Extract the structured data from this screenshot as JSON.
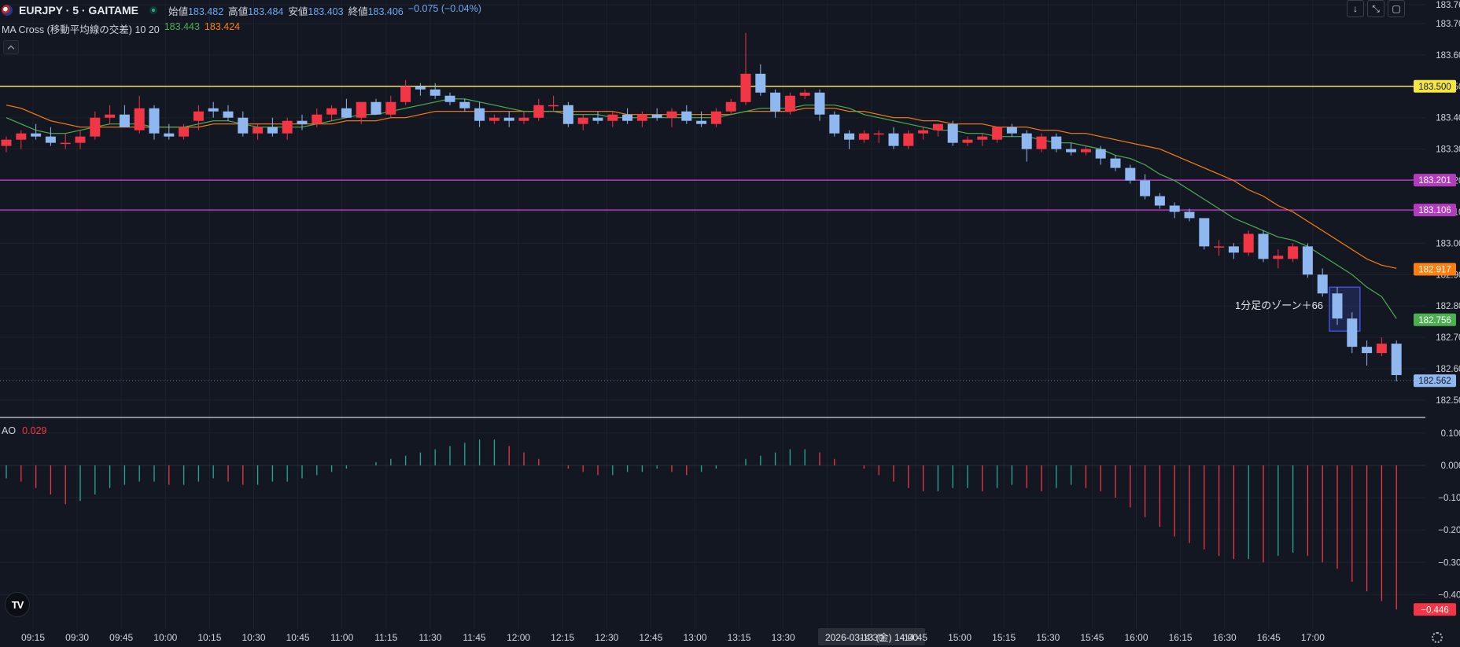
{
  "header": {
    "symbol": "EURJPY · 5 · GAITAME",
    "open_label": "始値",
    "open": "183.482",
    "high_label": "高値",
    "high": "183.484",
    "low_label": "安値",
    "low": "183.403",
    "close_label": "終値",
    "close": "183.406",
    "change": "−0.075 (−0.04%)"
  },
  "indicator_ma": {
    "title": "MA Cross (移動平均線の交差) 10 20",
    "fast_value": "183.443",
    "slow_value": "183.424",
    "fast_color": "#4caf50",
    "slow_color": "#ff7f0e"
  },
  "indicator_ao": {
    "title": "AO",
    "value": "0.029"
  },
  "toolbar": {
    "icons": [
      "arrow-down-icon",
      "collapse-icon",
      "maximize-icon"
    ]
  },
  "annotation": {
    "text": "1分足のゾーン＋66"
  },
  "colors": {
    "background": "#131722",
    "up": "#f23645",
    "down": "#8fb7f0",
    "grid": "#1e222d",
    "yellow_line": "#f5e642",
    "magenta_line": "#b23cbc",
    "ao_up": "#22ab94",
    "ao_down": "#f23645"
  },
  "chart_data": [
    {
      "type": "candlestick",
      "ylim": [
        182.47,
        183.76
      ],
      "price_ticks": [
        "183.760",
        "183.700",
        "183.600",
        "183.500",
        "183.400",
        "183.300",
        "183.200",
        "183.100",
        "183.000",
        "182.900",
        "182.800",
        "182.700",
        "182.600",
        "182.500"
      ],
      "x_labels": [
        "09:15",
        "09:30",
        "09:45",
        "10:00",
        "10:15",
        "10:30",
        "10:45",
        "11:00",
        "11:15",
        "11:30",
        "11:45",
        "12:00",
        "12:15",
        "12:30",
        "12:45",
        "13:00",
        "13:15",
        "13:30",
        "2026-03-13 (金)  14:00",
        "14:30",
        "14:45",
        "15:00",
        "15:15",
        "15:30",
        "15:45",
        "16:00",
        "16:15",
        "16:30",
        "16:45",
        "17:00"
      ],
      "horizontal_lines": [
        {
          "price": 183.5,
          "label": "183.500",
          "color": "#f5e642"
        },
        {
          "price": 183.201,
          "label": "183.201",
          "color": "#b23cbc"
        },
        {
          "price": 183.106,
          "label": "183.106",
          "color": "#b23cbc"
        }
      ],
      "price_badges": [
        {
          "price": 182.917,
          "label": "182.917",
          "color": "#ff7f0e"
        },
        {
          "price": 182.756,
          "label": "182.756",
          "color": "#4caf50"
        },
        {
          "price": 182.562,
          "label": "182.562",
          "color": "#8fb7f0"
        }
      ],
      "zone": {
        "from_bar": 90,
        "to_bar": 91,
        "high": 182.86,
        "low": 182.72
      },
      "candles": [
        [
          183.31,
          183.34,
          183.29,
          183.33
        ],
        [
          183.33,
          183.36,
          183.3,
          183.35
        ],
        [
          183.35,
          183.38,
          183.33,
          183.34
        ],
        [
          183.34,
          183.37,
          183.31,
          183.32
        ],
        [
          183.32,
          183.35,
          183.3,
          183.32
        ],
        [
          183.32,
          183.36,
          183.3,
          183.34
        ],
        [
          183.34,
          183.42,
          183.33,
          183.4
        ],
        [
          183.4,
          183.44,
          183.38,
          183.41
        ],
        [
          183.41,
          183.44,
          183.38,
          183.37
        ],
        [
          183.36,
          183.47,
          183.35,
          183.43
        ],
        [
          183.43,
          183.44,
          183.33,
          183.35
        ],
        [
          183.35,
          183.38,
          183.33,
          183.34
        ],
        [
          183.34,
          183.38,
          183.33,
          183.37
        ],
        [
          183.39,
          183.44,
          183.36,
          183.42
        ],
        [
          183.43,
          183.45,
          183.4,
          183.42
        ],
        [
          183.42,
          183.44,
          183.39,
          183.4
        ],
        [
          183.4,
          183.42,
          183.34,
          183.35
        ],
        [
          183.35,
          183.38,
          183.33,
          183.37
        ],
        [
          183.37,
          183.4,
          183.34,
          183.35
        ],
        [
          183.35,
          183.4,
          183.33,
          183.39
        ],
        [
          183.39,
          183.41,
          183.36,
          183.38
        ],
        [
          183.38,
          183.43,
          183.37,
          183.41
        ],
        [
          183.41,
          183.44,
          183.39,
          183.43
        ],
        [
          183.43,
          183.46,
          183.4,
          183.4
        ],
        [
          183.4,
          183.45,
          183.38,
          183.45
        ],
        [
          183.45,
          183.46,
          183.41,
          183.41
        ],
        [
          183.41,
          183.47,
          183.4,
          183.45
        ],
        [
          183.45,
          183.52,
          183.44,
          183.5
        ],
        [
          183.5,
          183.51,
          183.47,
          183.49
        ],
        [
          183.49,
          183.51,
          183.46,
          183.47
        ],
        [
          183.47,
          183.48,
          183.44,
          183.45
        ],
        [
          183.45,
          183.46,
          183.42,
          183.43
        ],
        [
          183.43,
          183.45,
          183.37,
          183.39
        ],
        [
          183.39,
          183.41,
          183.38,
          183.4
        ],
        [
          183.4,
          183.42,
          183.37,
          183.39
        ],
        [
          183.39,
          183.42,
          183.38,
          183.4
        ],
        [
          183.4,
          183.46,
          183.39,
          183.44
        ],
        [
          183.44,
          183.47,
          183.42,
          183.44
        ],
        [
          183.44,
          183.45,
          183.37,
          183.38
        ],
        [
          183.38,
          183.41,
          183.36,
          183.4
        ],
        [
          183.4,
          183.42,
          183.38,
          183.39
        ],
        [
          183.39,
          183.42,
          183.37,
          183.41
        ],
        [
          183.41,
          183.43,
          183.38,
          183.39
        ],
        [
          183.39,
          183.42,
          183.37,
          183.41
        ],
        [
          183.41,
          183.43,
          183.39,
          183.4
        ],
        [
          183.4,
          183.43,
          183.37,
          183.42
        ],
        [
          183.42,
          183.44,
          183.38,
          183.39
        ],
        [
          183.39,
          183.42,
          183.37,
          183.38
        ],
        [
          183.38,
          183.43,
          183.37,
          183.42
        ],
        [
          183.42,
          183.46,
          183.41,
          183.45
        ],
        [
          183.45,
          183.67,
          183.44,
          183.54
        ],
        [
          183.54,
          183.57,
          183.47,
          183.48
        ],
        [
          183.48,
          183.49,
          183.4,
          183.42
        ],
        [
          183.42,
          183.48,
          183.41,
          183.47
        ],
        [
          183.47,
          183.49,
          183.46,
          183.48
        ],
        [
          183.48,
          183.49,
          183.39,
          183.41
        ],
        [
          183.41,
          183.42,
          183.34,
          183.35
        ],
        [
          183.35,
          183.36,
          183.3,
          183.33
        ],
        [
          183.33,
          183.36,
          183.32,
          183.35
        ],
        [
          183.35,
          183.36,
          183.32,
          183.35
        ],
        [
          183.35,
          183.37,
          183.3,
          183.31
        ],
        [
          183.31,
          183.36,
          183.3,
          183.35
        ],
        [
          183.35,
          183.37,
          183.33,
          183.36
        ],
        [
          183.36,
          183.38,
          183.34,
          183.38
        ],
        [
          183.38,
          183.39,
          183.31,
          183.32
        ],
        [
          183.32,
          183.34,
          183.31,
          183.33
        ],
        [
          183.33,
          183.35,
          183.31,
          183.34
        ],
        [
          183.33,
          183.37,
          183.32,
          183.37
        ],
        [
          183.37,
          183.38,
          183.34,
          183.35
        ],
        [
          183.35,
          183.36,
          183.26,
          183.3
        ],
        [
          183.3,
          183.35,
          183.29,
          183.34
        ],
        [
          183.34,
          183.35,
          183.29,
          183.3
        ],
        [
          183.3,
          183.32,
          183.28,
          183.29
        ],
        [
          183.29,
          183.31,
          183.28,
          183.3
        ],
        [
          183.3,
          183.31,
          183.25,
          183.27
        ],
        [
          183.27,
          183.28,
          183.23,
          183.24
        ],
        [
          183.24,
          183.25,
          183.19,
          183.2
        ],
        [
          183.2,
          183.22,
          183.14,
          183.15
        ],
        [
          183.15,
          183.16,
          183.11,
          183.12
        ],
        [
          183.12,
          183.13,
          183.08,
          183.1
        ],
        [
          183.1,
          183.11,
          183.07,
          183.08
        ],
        [
          183.08,
          183.08,
          182.98,
          182.99
        ],
        [
          182.99,
          183.01,
          182.96,
          182.99
        ],
        [
          182.99,
          183.0,
          182.95,
          182.97
        ],
        [
          182.97,
          183.04,
          182.96,
          183.03
        ],
        [
          183.03,
          183.04,
          182.94,
          182.95
        ],
        [
          182.95,
          182.98,
          182.92,
          182.96
        ],
        [
          182.95,
          183.0,
          182.94,
          182.99
        ],
        [
          182.99,
          183.0,
          182.89,
          182.9
        ],
        [
          182.9,
          182.92,
          182.83,
          182.84
        ],
        [
          182.84,
          182.86,
          182.74,
          182.76
        ],
        [
          182.76,
          182.78,
          182.65,
          182.67
        ],
        [
          182.67,
          182.69,
          182.61,
          182.65
        ],
        [
          182.65,
          182.7,
          182.64,
          182.68
        ],
        [
          182.68,
          182.69,
          182.56,
          182.58
        ]
      ],
      "ma_fast": [
        183.4,
        183.38,
        183.36,
        183.35,
        183.35,
        183.36,
        183.37,
        183.38,
        183.38,
        183.38,
        183.37,
        183.37,
        183.37,
        183.38,
        183.39,
        183.39,
        183.38,
        183.37,
        183.37,
        183.37,
        183.37,
        183.38,
        183.39,
        183.4,
        183.41,
        183.41,
        183.42,
        183.43,
        183.44,
        183.45,
        183.46,
        183.46,
        183.45,
        183.44,
        183.43,
        183.42,
        183.42,
        183.42,
        183.41,
        183.41,
        183.41,
        183.4,
        183.4,
        183.4,
        183.4,
        183.4,
        183.4,
        183.4,
        183.4,
        183.41,
        183.42,
        183.43,
        183.43,
        183.43,
        183.44,
        183.44,
        183.44,
        183.43,
        183.41,
        183.4,
        183.39,
        183.38,
        183.37,
        183.36,
        183.36,
        183.35,
        183.35,
        183.34,
        183.34,
        183.34,
        183.33,
        183.32,
        183.32,
        183.31,
        183.3,
        183.28,
        183.27,
        183.25,
        183.22,
        183.2,
        183.17,
        183.14,
        183.11,
        183.08,
        183.06,
        183.04,
        183.02,
        183.01,
        182.99,
        182.96,
        182.93,
        182.9,
        182.86,
        182.83,
        182.76
      ],
      "ma_slow": [
        183.44,
        183.43,
        183.41,
        183.39,
        183.38,
        183.37,
        183.37,
        183.37,
        183.37,
        183.37,
        183.37,
        183.37,
        183.37,
        183.37,
        183.38,
        183.38,
        183.38,
        183.38,
        183.38,
        183.38,
        183.38,
        183.38,
        183.38,
        183.39,
        183.39,
        183.39,
        183.4,
        183.4,
        183.41,
        183.42,
        183.42,
        183.42,
        183.42,
        183.42,
        183.42,
        183.42,
        183.42,
        183.42,
        183.42,
        183.42,
        183.42,
        183.42,
        183.41,
        183.41,
        183.41,
        183.41,
        183.41,
        183.41,
        183.41,
        183.41,
        183.42,
        183.42,
        183.42,
        183.42,
        183.43,
        183.43,
        183.43,
        183.42,
        183.42,
        183.41,
        183.4,
        183.4,
        183.39,
        183.39,
        183.38,
        183.38,
        183.38,
        183.37,
        183.37,
        183.37,
        183.36,
        183.36,
        183.35,
        183.35,
        183.34,
        183.33,
        183.32,
        183.31,
        183.3,
        183.28,
        183.26,
        183.24,
        183.22,
        183.2,
        183.17,
        183.15,
        183.12,
        183.1,
        183.07,
        183.04,
        183.01,
        182.98,
        182.95,
        182.93,
        182.92
      ]
    },
    {
      "type": "bar",
      "title": "AO",
      "ylim": [
        -0.5,
        0.14
      ],
      "y_ticks": [
        "0.100",
        "0.000",
        "−0.100",
        "−0.200",
        "−0.300",
        "−0.400"
      ],
      "last_value_label": "−0.446",
      "values": [
        -0.04,
        -0.05,
        -0.07,
        -0.09,
        -0.12,
        -0.11,
        -0.09,
        -0.07,
        -0.06,
        -0.05,
        -0.05,
        -0.06,
        -0.06,
        -0.05,
        -0.04,
        -0.05,
        -0.06,
        -0.06,
        -0.05,
        -0.05,
        -0.04,
        -0.03,
        -0.02,
        -0.01,
        0.0,
        0.01,
        0.02,
        0.03,
        0.04,
        0.05,
        0.06,
        0.07,
        0.08,
        0.08,
        0.06,
        0.04,
        0.02,
        0.0,
        -0.01,
        -0.02,
        -0.03,
        -0.03,
        -0.02,
        -0.02,
        -0.01,
        -0.02,
        -0.03,
        -0.02,
        -0.01,
        0.0,
        0.02,
        0.03,
        0.04,
        0.05,
        0.05,
        0.04,
        0.02,
        0.0,
        -0.01,
        -0.03,
        -0.05,
        -0.07,
        -0.08,
        -0.08,
        -0.07,
        -0.07,
        -0.08,
        -0.07,
        -0.06,
        -0.07,
        -0.08,
        -0.07,
        -0.06,
        -0.07,
        -0.08,
        -0.1,
        -0.13,
        -0.16,
        -0.19,
        -0.22,
        -0.24,
        -0.26,
        -0.28,
        -0.29,
        -0.29,
        -0.3,
        -0.28,
        -0.27,
        -0.28,
        -0.3,
        -0.32,
        -0.36,
        -0.39,
        -0.42,
        -0.446
      ],
      "colors_up_down": [
        "#22ab94",
        "#f23645"
      ]
    }
  ]
}
